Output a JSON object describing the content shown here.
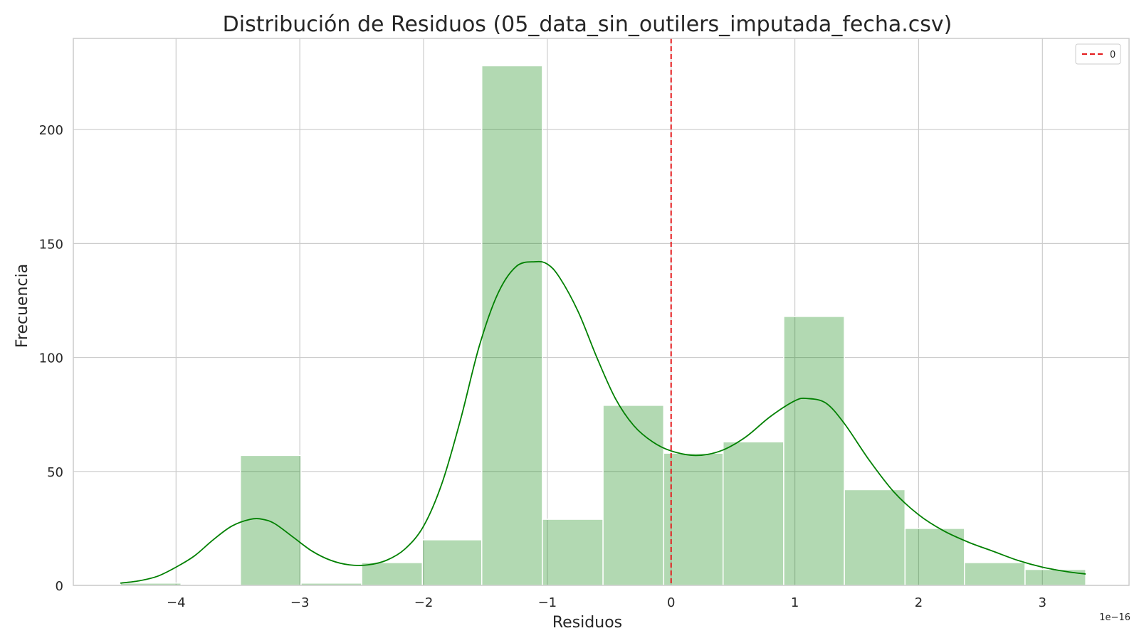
{
  "chart_data": {
    "type": "histogram",
    "title": "Distribución de Residuos (05_data_sin_outilers_imputada_fecha.csv)",
    "xlabel": "Residuos",
    "ylabel": "Frecuencia",
    "x_offset_label": "1e−16",
    "x_scale": 1e-16,
    "xlim": [
      -4.83,
      3.7
    ],
    "ylim": [
      0,
      240
    ],
    "x_ticks": [
      -4,
      -3,
      -2,
      -1,
      0,
      1,
      2,
      3
    ],
    "x_tick_labels": [
      "−4",
      "−3",
      "−2",
      "−1",
      "0",
      "1",
      "2",
      "3"
    ],
    "y_ticks": [
      0,
      50,
      100,
      150,
      200
    ],
    "y_tick_labels": [
      "0",
      "50",
      "100",
      "150",
      "200"
    ],
    "grid": true,
    "bins": [
      {
        "x0": -4.45,
        "x1": -3.96,
        "count": 1
      },
      {
        "x0": -3.96,
        "x1": -3.48,
        "count": 0
      },
      {
        "x0": -3.48,
        "x1": -2.99,
        "count": 57
      },
      {
        "x0": -2.99,
        "x1": -2.5,
        "count": 1
      },
      {
        "x0": -2.5,
        "x1": -2.01,
        "count": 10
      },
      {
        "x0": -2.01,
        "x1": -1.53,
        "count": 20
      },
      {
        "x0": -1.53,
        "x1": -1.04,
        "count": 228
      },
      {
        "x0": -1.04,
        "x1": -0.55,
        "count": 29
      },
      {
        "x0": -0.55,
        "x1": -0.06,
        "count": 79
      },
      {
        "x0": -0.06,
        "x1": 0.42,
        "count": 58
      },
      {
        "x0": 0.42,
        "x1": 0.91,
        "count": 63
      },
      {
        "x0": 0.91,
        "x1": 1.4,
        "count": 118
      },
      {
        "x0": 1.4,
        "x1": 1.89,
        "count": 42
      },
      {
        "x0": 1.89,
        "x1": 2.37,
        "count": 25
      },
      {
        "x0": 2.37,
        "x1": 2.86,
        "count": 10
      },
      {
        "x0": 2.86,
        "x1": 3.35,
        "count": 7
      }
    ],
    "kde": {
      "x": [
        -4.45,
        -4.3,
        -4.15,
        -4.0,
        -3.85,
        -3.7,
        -3.55,
        -3.4,
        -3.3,
        -3.2,
        -3.05,
        -2.9,
        -2.75,
        -2.6,
        -2.45,
        -2.3,
        -2.15,
        -2.0,
        -1.85,
        -1.7,
        -1.55,
        -1.4,
        -1.25,
        -1.1,
        -1.0,
        -0.9,
        -0.75,
        -0.6,
        -0.45,
        -0.3,
        -0.15,
        0.0,
        0.2,
        0.4,
        0.6,
        0.8,
        1.0,
        1.1,
        1.25,
        1.4,
        1.6,
        1.8,
        2.0,
        2.2,
        2.4,
        2.6,
        2.8,
        3.0,
        3.2,
        3.35
      ],
      "y": [
        1,
        2,
        4,
        8,
        13,
        20,
        26,
        29,
        29,
        27,
        21,
        15,
        11,
        9,
        9,
        11,
        16,
        26,
        45,
        73,
        105,
        128,
        140,
        142,
        141,
        135,
        120,
        100,
        82,
        70,
        63,
        59,
        57,
        59,
        65,
        74,
        81,
        82,
        80,
        71,
        55,
        41,
        31,
        24,
        19,
        15,
        11,
        8,
        6,
        5
      ]
    },
    "reference_line": {
      "x": 0,
      "label": "0",
      "color": "#e41a1c",
      "style": "dashed"
    },
    "legend": {
      "placement": "top-right",
      "entries": [
        "0"
      ]
    },
    "bar_color": "#008000",
    "kde_color": "#008000"
  }
}
